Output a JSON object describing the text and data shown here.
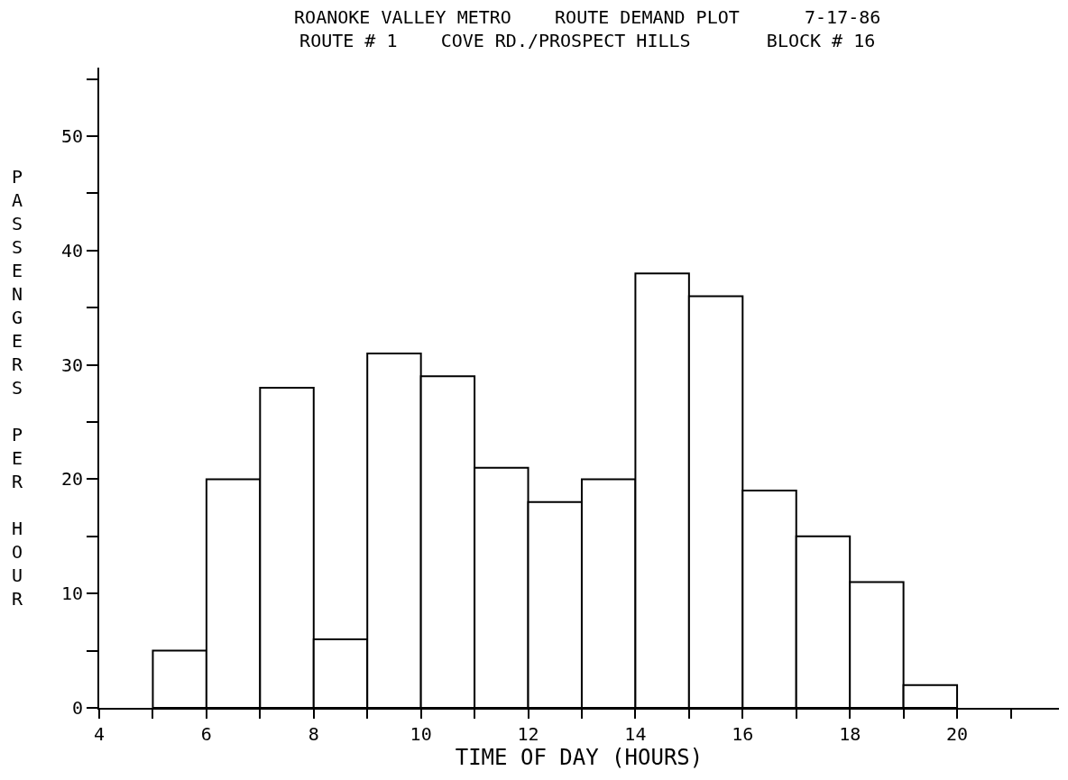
{
  "chart_data": {
    "type": "histogram",
    "title": "ROANOKE VALLEY METRO    ROUTE DEMAND PLOT      7-17-86",
    "subtitle": "ROUTE # 1    COVE RD./PROSPECT HILLS       BLOCK # 16",
    "xlabel": "TIME OF DAY (HOURS)",
    "ylabel": "PASSENGERS PER HOUR",
    "bins": [
      5,
      6,
      7,
      8,
      9,
      10,
      11,
      12,
      13,
      14,
      15,
      16,
      17,
      18,
      19,
      20
    ],
    "values": [
      5,
      20,
      28,
      6,
      31,
      29,
      21,
      18,
      20,
      38,
      36,
      19,
      15,
      11,
      2
    ],
    "color": "#ffffff",
    "xlim": [
      4,
      21.9
    ],
    "xticks": [
      4,
      {
        "value": 5,
        "label": null
      },
      6,
      {
        "value": 7,
        "label": null
      },
      8,
      {
        "value": 9,
        "label": null
      },
      10,
      {
        "value": 11,
        "label": null
      },
      12,
      {
        "value": 13,
        "label": null
      },
      14,
      {
        "value": 15,
        "label": null
      },
      16,
      {
        "value": 17,
        "label": null
      },
      18,
      {
        "value": 19,
        "label": null
      },
      20,
      {
        "value": 21,
        "label": null
      }
    ],
    "ylim": [
      0,
      56
    ],
    "yticks": [
      0,
      {
        "value": 5,
        "label": null
      },
      10,
      {
        "value": 15,
        "label": null
      },
      20,
      {
        "value": 25,
        "label": null
      },
      30,
      {
        "value": 35,
        "label": null
      },
      40,
      {
        "value": 45,
        "label": null
      },
      50,
      {
        "value": 55,
        "label": null
      }
    ]
  }
}
